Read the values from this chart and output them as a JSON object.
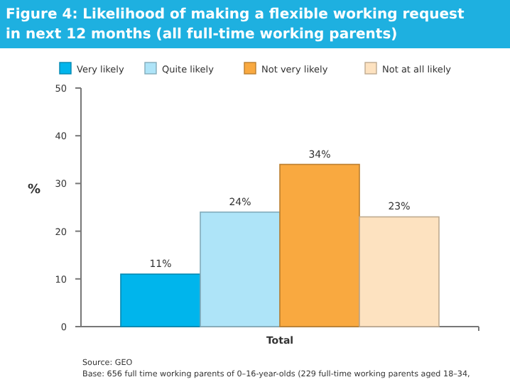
{
  "chart_data": {
    "type": "bar",
    "title": "Figure 4: Likelihood of making a flexible working request in next 12 months (all full-time working parents)",
    "ylabel": "%",
    "categories": [
      "Total"
    ],
    "series": [
      {
        "name": "Very likely",
        "color": "#00b5ec",
        "values": [
          11
        ],
        "value_labels": [
          "11%"
        ]
      },
      {
        "name": "Quite likely",
        "color": "#aee4f8",
        "values": [
          24
        ],
        "value_labels": [
          "24%"
        ]
      },
      {
        "name": "Not very likely",
        "color": "#f9a940",
        "values": [
          34
        ],
        "value_labels": [
          "34%"
        ]
      },
      {
        "name": "Not at all likely",
        "color": "#fde2c0",
        "values": [
          23
        ],
        "value_labels": [
          "23%"
        ]
      }
    ],
    "ylim": [
      0,
      50
    ],
    "yticks": [
      0,
      10,
      20,
      30,
      40,
      50
    ],
    "legend": "top",
    "grid": false,
    "annotations": [
      "Source: GEO",
      "Base: 656 full time working parents of 0–16-year-olds (229 full-time working parents aged 18–34,"
    ]
  }
}
